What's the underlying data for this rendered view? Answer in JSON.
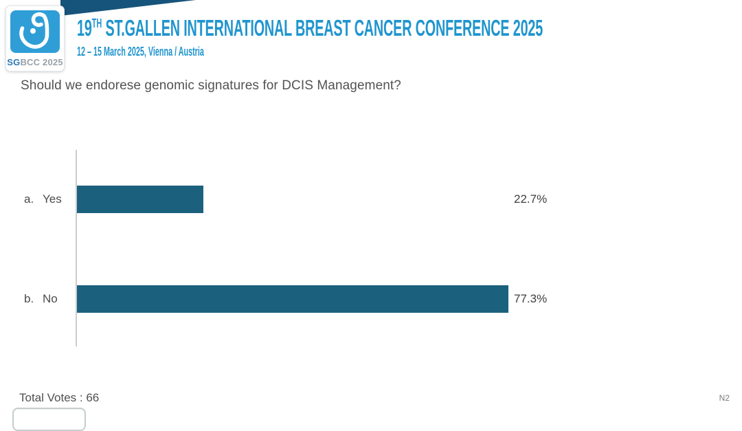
{
  "header": {
    "logo": {
      "icon": "breast-ribbon-icon",
      "square_color": "#2f9ed7",
      "text_bold": "SG",
      "text_rest": "BCC 2025"
    },
    "title_prefix": "19",
    "title_sup": "TH",
    "title_rest": " ST.GALLEN INTERNATIONAL BREAST CANCER CONFERENCE 2025",
    "subtitle": "12 – 15 March 2025, Vienna / Austria",
    "accent_color": "#2095ce",
    "wedge_color": "#17547b"
  },
  "question": "Should we endorese genomic signatures for DCIS Management?",
  "chart_data": {
    "type": "bar",
    "orientation": "horizontal",
    "title": "Should we endorese genomic signatures for DCIS Management?",
    "categories": [
      "a. Yes",
      "b. No"
    ],
    "values": [
      22.7,
      77.3
    ],
    "options": [
      {
        "letter": "a.",
        "text": "Yes",
        "value": 22.7,
        "value_label": "22.7%"
      },
      {
        "letter": "b.",
        "text": "No",
        "value": 77.3,
        "value_label": "77.3%"
      }
    ],
    "xlim": [
      0,
      100
    ],
    "bar_color": "#1b617e",
    "grid": "off",
    "legend": "none"
  },
  "footer": {
    "total_votes_label": "Total Votes : 66",
    "slide_number": "N2"
  }
}
